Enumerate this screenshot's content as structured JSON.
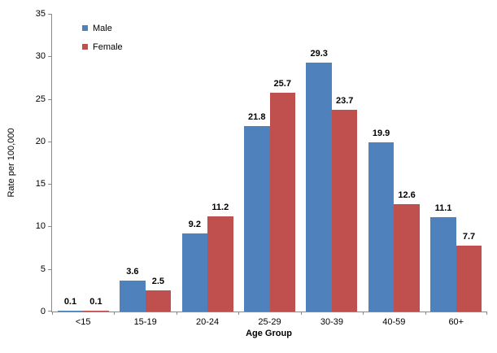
{
  "chart_data": {
    "type": "bar",
    "categories": [
      "<15",
      "15-19",
      "20-24",
      "25-29",
      "30-39",
      "40-59",
      "60+"
    ],
    "series": [
      {
        "name": "Male",
        "color": "#4F81BD",
        "values": [
          0.1,
          3.6,
          9.2,
          21.8,
          29.3,
          19.9,
          11.1
        ]
      },
      {
        "name": "Female",
        "color": "#C0504D",
        "values": [
          0.1,
          2.5,
          11.2,
          25.7,
          23.7,
          12.6,
          7.7
        ]
      }
    ],
    "title": "",
    "xlabel": "Age Group",
    "ylabel": "Rate per 100,000",
    "ylim": [
      0,
      35
    ],
    "ytick_step": 5,
    "grid": false,
    "legend_position": "top-left-inside",
    "data_labels": true,
    "data_label_format": "one-decimal",
    "axis_color": "#898989"
  }
}
